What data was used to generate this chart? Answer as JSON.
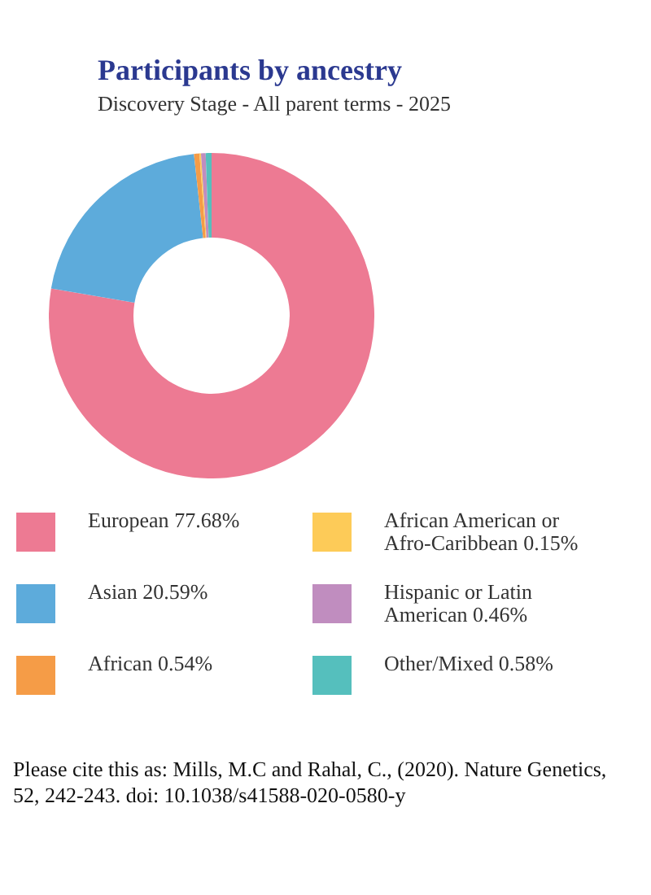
{
  "chart_data": {
    "type": "donut",
    "title": "Participants by ancestry",
    "subtitle": "Discovery Stage - All parent terms - 2025",
    "categories": [
      "European",
      "Asian",
      "African",
      "African American or Afro-Caribbean",
      "Hispanic or Latin American",
      "Other/Mixed"
    ],
    "values": [
      77.68,
      20.59,
      0.54,
      0.15,
      0.46,
      0.58
    ],
    "value_labels": [
      "77.68%",
      "20.59%",
      "0.54%",
      "0.15%",
      "0.46%",
      "0.58%"
    ],
    "colors": [
      "#ed7a93",
      "#5dabdb",
      "#f59c47",
      "#fdcb58",
      "#c08dbf",
      "#55bfbd"
    ],
    "legend": "bottom",
    "annotations": [
      "Please cite this as: Mills, M.C and Rahal, C., (2020). Nature Genetics, 52, 242-243. doi: 10.1038/s41588-020-0580-y"
    ]
  }
}
